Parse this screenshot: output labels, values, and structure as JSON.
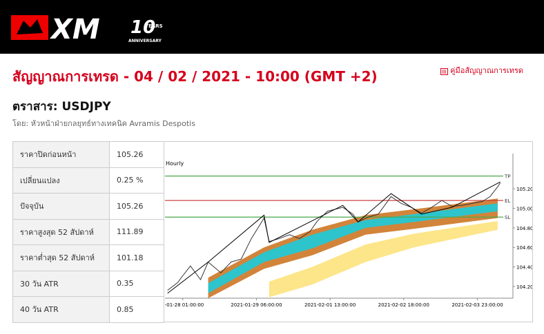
{
  "header": {
    "brand": "XM",
    "number": "10",
    "years": "YEARS",
    "anniversary": "ANNIVERSARY"
  },
  "page": {
    "title": "สัญญาณการเทรด - 04 / 02 / 2021 - 10:00 (GMT +2)",
    "guide_link": "คู่มือสัญญาณการเทรด",
    "instrument": "ตราสาร: USDJPY",
    "byline": "โดย: หัวหน้าฝ่ายกลยุทธ์ทางเทคนิค Avramis Despotis"
  },
  "table": {
    "rows": [
      [
        "ราคาปิดก่อนหน้า",
        "105.26"
      ],
      [
        "เปลี่ยนแปลง",
        "0.25 %"
      ],
      [
        "ปัจจุบัน",
        "105.26"
      ],
      [
        "ราคาสูงสุด 52 สัปดาห์",
        "111.89"
      ],
      [
        "ราคาต่ำสุด 52 สัปดาห์",
        "101.18"
      ],
      [
        "30 วัน ATR",
        "0.35"
      ],
      [
        "40 วัน ATR",
        "0.85"
      ]
    ]
  },
  "chart_data": {
    "type": "line",
    "subtitle": "Hourly",
    "xlim": [
      0,
      137
    ],
    "xticks": [
      {
        "value": 7,
        "label": "1-01-28 01:00:00"
      },
      {
        "value": 36,
        "label": "2021-01-29 06:00:00"
      },
      {
        "value": 65,
        "label": "2021-02-01 13:00:00"
      },
      {
        "value": 94,
        "label": "2021-02-02 18:00:00"
      },
      {
        "value": 123,
        "label": "2021-02-03 23:00:00"
      }
    ],
    "ylim": [
      104.08,
      105.56
    ],
    "yticks": [
      {
        "value": 104.2,
        "label": "104.20"
      },
      {
        "value": 104.4,
        "label": "104.40"
      },
      {
        "value": 104.6,
        "label": "104.60"
      },
      {
        "value": 104.8,
        "label": "104.80"
      },
      {
        "value": 105,
        "label": "105.00"
      },
      {
        "value": 105.2,
        "label": "105.20"
      }
    ],
    "areas": [
      {
        "color": "#d2843a",
        "x": [
          17,
          39,
          58,
          79,
          98,
          131
        ],
        "upper": [
          104.29,
          104.6,
          104.78,
          104.93,
          104.99,
          105.1
        ],
        "lower": [
          104.08,
          104.38,
          104.52,
          104.73,
          104.79,
          104.9
        ]
      },
      {
        "color": "#2ec4cc",
        "x": [
          17,
          39,
          58,
          79,
          98,
          131
        ],
        "upper": [
          104.235,
          104.55,
          104.73,
          104.88,
          104.94,
          105.05
        ],
        "lower": [
          104.13,
          104.45,
          104.59,
          104.8,
          104.86,
          104.97
        ]
      },
      {
        "color": "#fde58a",
        "x": [
          41,
          58,
          79,
          98,
          131
        ],
        "upper": [
          104.25,
          104.4,
          104.63,
          104.74,
          104.87
        ],
        "lower": [
          104.09,
          104.22,
          104.45,
          104.6,
          104.78
        ]
      }
    ],
    "series": [
      {
        "color": "#333333",
        "x": [
          1,
          5,
          7,
          10,
          14,
          17,
          22,
          26,
          30,
          34,
          39,
          41,
          45,
          49,
          53,
          57,
          60,
          64,
          70,
          74,
          76,
          80,
          84,
          89,
          93,
          97,
          101,
          105,
          109,
          113,
          117,
          121,
          125,
          128,
          131,
          132
        ],
        "values": [
          104.16,
          104.24,
          104.31,
          104.41,
          104.27,
          104.45,
          104.34,
          104.45,
          104.48,
          104.69,
          104.9,
          104.66,
          104.69,
          104.73,
          104.69,
          104.76,
          104.87,
          104.97,
          105.01,
          104.94,
          104.86,
          104.91,
          104.94,
          105.12,
          105.05,
          105.01,
          104.95,
          105.01,
          105.08,
          105.02,
          105.03,
          105.05,
          105.07,
          105.12,
          105.22,
          105.26
        ]
      },
      {
        "color": "#000000",
        "x": [
          1,
          17,
          39,
          41,
          70,
          76,
          89,
          101,
          113,
          132
        ],
        "values": [
          104.13,
          104.45,
          104.93,
          104.65,
          105.03,
          104.86,
          105.15,
          104.94,
          105.01,
          105.27
        ]
      }
    ],
    "levels": [
      {
        "label": "TP",
        "value": 105.33,
        "color": "#4aa84a"
      },
      {
        "label": "EL",
        "value": 105.08,
        "color": "#d04040"
      },
      {
        "label": "SL",
        "value": 104.91,
        "color": "#4aa84a"
      }
    ]
  }
}
